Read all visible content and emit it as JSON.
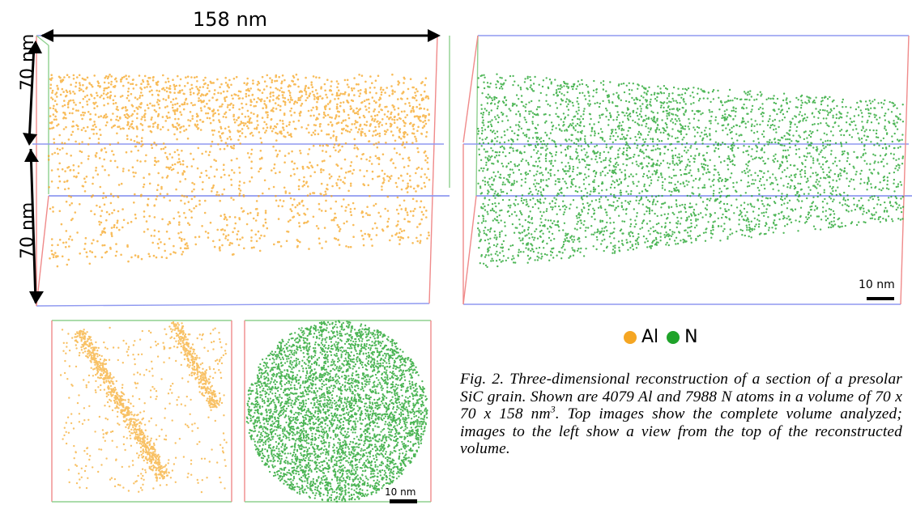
{
  "figure": {
    "length_label": "158 nm",
    "height_label_upper": "70 nm",
    "height_label_lower": "70 nm",
    "scale_label_top": "10 nm",
    "scale_label_bottom": "10 nm",
    "legend": [
      {
        "label": "Al",
        "color": "#f5a623"
      },
      {
        "label": "N",
        "color": "#1fa32a"
      }
    ],
    "caption": {
      "prefix": "Fig. 2. Three-dimensional reconstruction of a section of a presolar SiC grain. Shown are 4079 Al and 7988 N atoms in a volume of 70 x 70 x 158 nm",
      "superscript": "3",
      "suffix": ". Top images show the complete volume analyzed; images to the left show a view from the top of the reconstructed volume."
    },
    "atom_counts": {
      "Al": 4079,
      "N": 7988
    },
    "colors": {
      "al_atom": "#f5a623",
      "n_atom": "#1fa32a",
      "box_red": "#f08a8a",
      "box_green": "#8fd08f",
      "box_blue": "#8f99f0"
    }
  }
}
